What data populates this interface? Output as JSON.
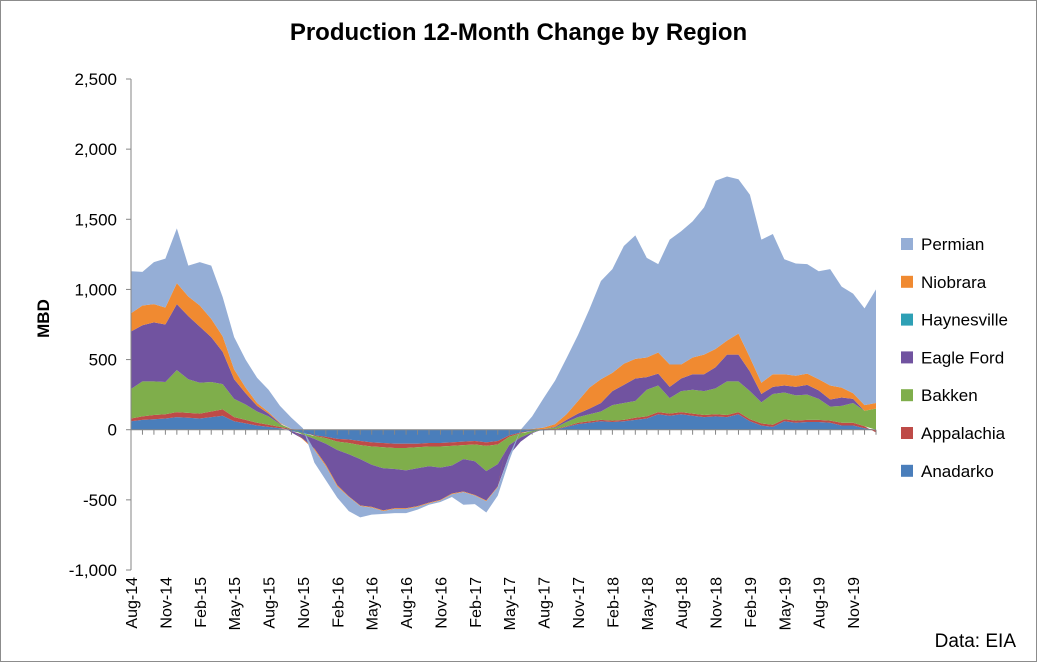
{
  "chart_data": {
    "type": "area",
    "stacked": true,
    "title": "Production 12-Month Change by Region",
    "ylabel": "MBD",
    "xlabel": "",
    "source": "Data: EIA",
    "ylim": [
      -1000,
      2500
    ],
    "yticks": [
      -1000,
      -500,
      0,
      500,
      1000,
      1500,
      2000,
      2500
    ],
    "ytick_labels": [
      "-1,000",
      "-500",
      "0",
      "500",
      "1,000",
      "1,500",
      "2,000",
      "2,500"
    ],
    "x_start": "Aug-14",
    "n_months": 66,
    "xtick_labels": [
      "Aug-14",
      "Nov-14",
      "Feb-15",
      "May-15",
      "Aug-15",
      "Nov-15",
      "Feb-16",
      "May-16",
      "Aug-16",
      "Nov-16",
      "Feb-17",
      "May-17",
      "Aug-17",
      "Nov-17",
      "Feb-18",
      "May-18",
      "Aug-18",
      "Nov-18",
      "Feb-19",
      "May-19",
      "Aug-19",
      "Nov-19"
    ],
    "legend_position": "right",
    "legend_order": [
      "Permian",
      "Niobrara",
      "Haynesville",
      "Eagle Ford",
      "Bakken",
      "Appalachia",
      "Anadarko"
    ],
    "series": [
      {
        "name": "Anadarko",
        "color": "#4a7ebb",
        "values": [
          60,
          70,
          75,
          80,
          90,
          85,
          80,
          90,
          100,
          60,
          45,
          30,
          20,
          10,
          -10,
          -25,
          -40,
          -50,
          -65,
          -70,
          -80,
          -90,
          -95,
          -100,
          -100,
          -100,
          -95,
          -95,
          -90,
          -85,
          -80,
          -90,
          -80,
          -40,
          -20,
          -10,
          -5,
          0,
          20,
          40,
          50,
          60,
          55,
          60,
          70,
          80,
          110,
          100,
          110,
          100,
          90,
          95,
          90,
          110,
          60,
          30,
          20,
          60,
          50,
          55,
          55,
          50,
          30,
          30,
          10,
          0
        ]
      },
      {
        "name": "Appalachia",
        "color": "#be4b48",
        "values": [
          20,
          25,
          30,
          30,
          35,
          35,
          35,
          40,
          45,
          30,
          25,
          20,
          15,
          10,
          5,
          0,
          -5,
          -10,
          -20,
          -25,
          -30,
          -30,
          -30,
          -30,
          -30,
          -25,
          -25,
          -25,
          -25,
          -25,
          -25,
          -25,
          -25,
          -10,
          -5,
          0,
          5,
          5,
          5,
          10,
          10,
          10,
          10,
          10,
          15,
          15,
          15,
          15,
          15,
          15,
          15,
          15,
          15,
          15,
          15,
          15,
          15,
          15,
          15,
          15,
          15,
          15,
          20,
          20,
          15,
          -20
        ]
      },
      {
        "name": "Haynesville",
        "color": "#2ea0b5",
        "values": [
          0,
          0,
          0,
          0,
          0,
          0,
          0,
          0,
          0,
          0,
          0,
          0,
          0,
          0,
          0,
          0,
          0,
          0,
          0,
          0,
          0,
          0,
          0,
          0,
          0,
          0,
          0,
          0,
          0,
          0,
          0,
          0,
          0,
          0,
          0,
          0,
          0,
          0,
          0,
          0,
          0,
          0,
          0,
          0,
          0,
          0,
          0,
          0,
          0,
          0,
          0,
          0,
          0,
          0,
          0,
          0,
          0,
          0,
          0,
          0,
          0,
          0,
          0,
          0,
          0,
          0
        ]
      },
      {
        "name": "Bakken",
        "color": "#7fae4b",
        "values": [
          210,
          250,
          240,
          230,
          300,
          240,
          220,
          210,
          180,
          130,
          110,
          80,
          60,
          20,
          0,
          -10,
          -20,
          -40,
          -60,
          -80,
          -100,
          -130,
          -150,
          -150,
          -160,
          -150,
          -140,
          -150,
          -140,
          -100,
          -120,
          -180,
          -140,
          -60,
          -30,
          -10,
          0,
          10,
          30,
          40,
          50,
          60,
          110,
          120,
          120,
          190,
          190,
          110,
          150,
          170,
          170,
          185,
          240,
          220,
          200,
          150,
          220,
          190,
          180,
          180,
          150,
          100,
          120,
          140,
          110,
          150
        ]
      },
      {
        "name": "Eagle Ford",
        "color": "#7153a0",
        "values": [
          410,
          400,
          420,
          410,
          470,
          450,
          400,
          320,
          230,
          140,
          80,
          40,
          20,
          5,
          -10,
          -30,
          -70,
          -150,
          -250,
          -300,
          -330,
          -300,
          -300,
          -280,
          -270,
          -270,
          -260,
          -230,
          -200,
          -230,
          -240,
          -210,
          -160,
          -70,
          -30,
          -5,
          0,
          5,
          15,
          25,
          40,
          60,
          100,
          130,
          160,
          90,
          85,
          80,
          90,
          110,
          120,
          150,
          190,
          190,
          140,
          60,
          50,
          50,
          60,
          70,
          60,
          50,
          60,
          30,
          0,
          0
        ]
      },
      {
        "name": "Niobrara",
        "color": "#f08a31",
        "values": [
          130,
          140,
          130,
          120,
          150,
          140,
          150,
          130,
          110,
          70,
          40,
          20,
          10,
          5,
          0,
          -5,
          -10,
          -10,
          -10,
          -5,
          -5,
          -5,
          -5,
          -5,
          -5,
          -5,
          -5,
          -5,
          -5,
          -5,
          -5,
          -5,
          -5,
          0,
          0,
          5,
          10,
          20,
          40,
          90,
          150,
          170,
          130,
          150,
          140,
          140,
          150,
          160,
          100,
          120,
          140,
          130,
          100,
          150,
          100,
          80,
          90,
          80,
          80,
          80,
          80,
          100,
          70,
          40,
          40,
          40
        ]
      },
      {
        "name": "Permian",
        "color": "#95aed6",
        "values": [
          300,
          240,
          300,
          350,
          390,
          220,
          310,
          380,
          280,
          230,
          200,
          180,
          160,
          120,
          80,
          10,
          -90,
          -100,
          -80,
          -100,
          -80,
          -50,
          -20,
          -30,
          -30,
          -20,
          -10,
          -10,
          -20,
          -90,
          -60,
          -80,
          -60,
          -40,
          0,
          90,
          210,
          310,
          400,
          470,
          560,
          700,
          740,
          840,
          880,
          710,
          630,
          890,
          950,
          970,
          1050,
          1200,
          1170,
          1100,
          1160,
          1020,
          1000,
          820,
          800,
          780,
          770,
          830,
          720,
          710,
          690,
          810
        ]
      }
    ]
  }
}
